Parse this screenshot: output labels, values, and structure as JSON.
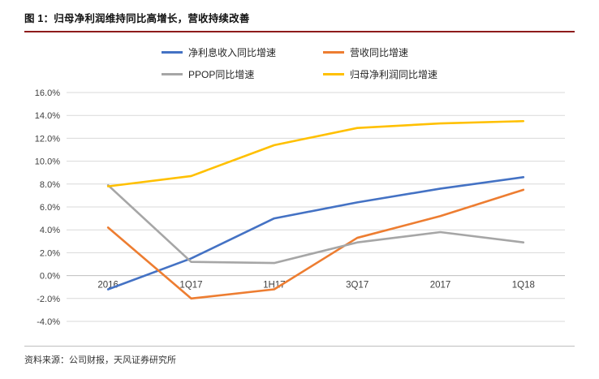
{
  "figure": {
    "title": "图 1：归母净利润维持同比高增长，营收持续改善",
    "source": "资料来源：公司财报，天风证券研究所"
  },
  "colors": {
    "title_rule": "#8e1b1b",
    "gridline": "#d9d9d9",
    "zero_axis": "#bfbfbf",
    "axis_text": "#404040"
  },
  "chart_data": {
    "type": "line",
    "categories": [
      "2016",
      "1Q17",
      "1H17",
      "3Q17",
      "2017",
      "1Q18"
    ],
    "series": [
      {
        "name": "净利息收入同比增速",
        "color": "#4472c4",
        "values": [
          -1.2,
          1.5,
          5.0,
          6.4,
          7.6,
          8.6
        ]
      },
      {
        "name": "营收同比增速",
        "color": "#ed7d31",
        "values": [
          4.2,
          -2.0,
          -1.2,
          3.3,
          5.2,
          7.5
        ]
      },
      {
        "name": "PPOP同比增速",
        "color": "#a6a6a6",
        "values": [
          7.9,
          1.2,
          1.1,
          2.9,
          3.8,
          2.9
        ]
      },
      {
        "name": "归母净利润同比增速",
        "color": "#ffc000",
        "values": [
          7.8,
          8.7,
          11.4,
          12.9,
          13.3,
          13.5
        ]
      }
    ],
    "xlabel": "",
    "ylabel": "",
    "ylim": [
      -4,
      16
    ],
    "ytick_step": 2,
    "ytick_format": "0.0%",
    "grid": true,
    "legend_position": "top"
  }
}
